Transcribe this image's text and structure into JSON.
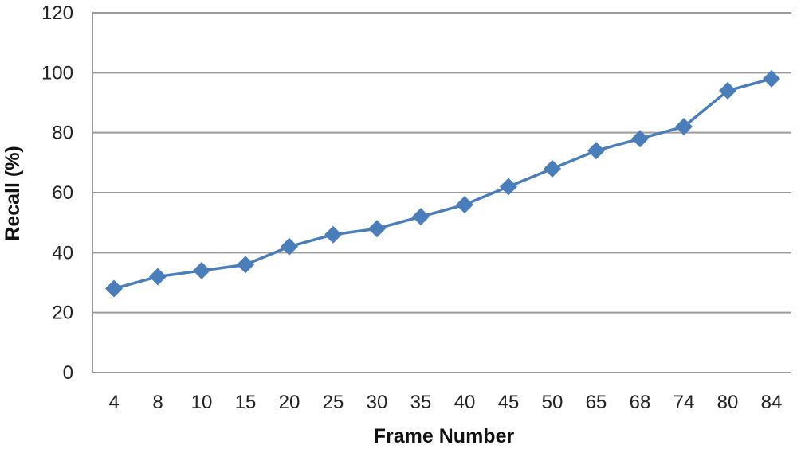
{
  "chart_data": {
    "type": "line",
    "title": "",
    "xlabel": "Frame Number",
    "ylabel": "Recall (%)",
    "categories": [
      "4",
      "8",
      "10",
      "15",
      "20",
      "25",
      "30",
      "35",
      "40",
      "45",
      "50",
      "65",
      "68",
      "74",
      "80",
      "84"
    ],
    "series": [
      {
        "values": [
          28,
          32,
          34,
          36,
          42,
          46,
          48,
          52,
          56,
          62,
          68,
          74,
          78,
          82,
          94,
          98
        ],
        "color": "#4a7ebb",
        "marker": "diamond"
      }
    ],
    "ylim": [
      0,
      120
    ],
    "yticks": [
      0,
      20,
      40,
      60,
      80,
      100,
      120
    ],
    "grid": true,
    "legend": "none"
  }
}
